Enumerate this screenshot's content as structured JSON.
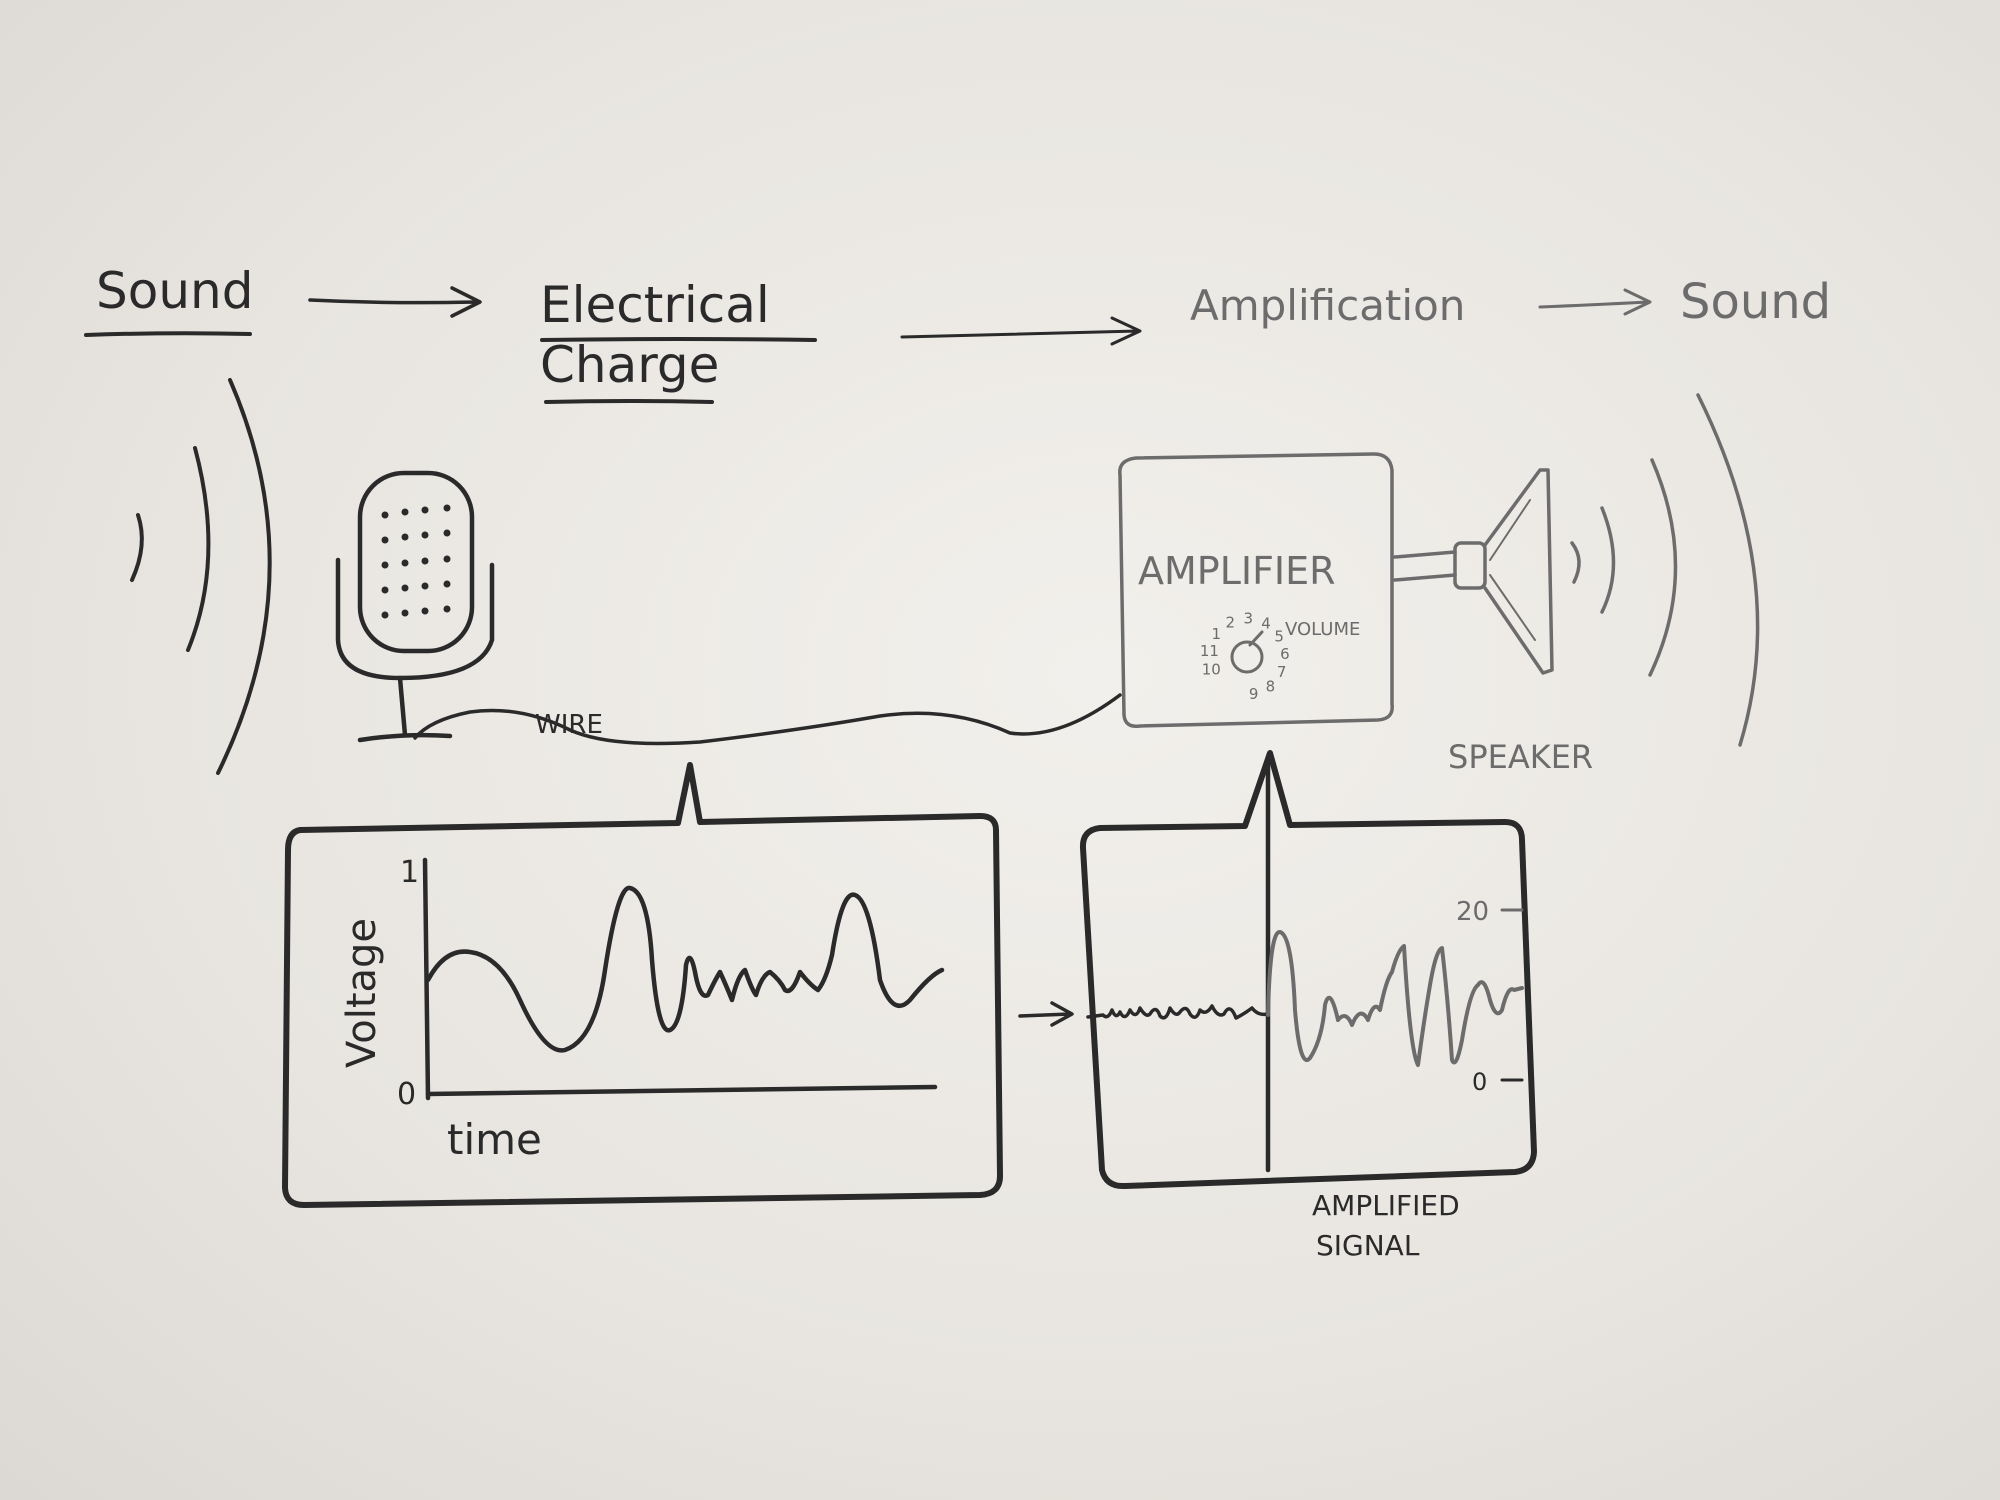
{
  "flow": {
    "step1": "Sound",
    "step2_line1": "Electrical",
    "step2_line2": "Charge",
    "step3": "Amplification",
    "step4": "Sound"
  },
  "labels": {
    "wire": "WIRE",
    "amplifier": "AMPLIFIER",
    "volume": "VOLUME",
    "speaker": "SPEAKER",
    "amplified_line1": "AMPLIFIED",
    "amplified_line2": "SIGNAL"
  },
  "knob": {
    "dial_marks": [
      "10",
      "11",
      "1",
      "2",
      "3",
      "4",
      "5",
      "6",
      "7",
      "8",
      "9"
    ]
  },
  "input_plot": {
    "ylabel": "Voltage",
    "xlabel": "time",
    "y_top_tick": "1",
    "y_bottom_tick": "0"
  },
  "output_plot": {
    "y_top_tick": "20",
    "y_bottom_tick": "0"
  },
  "colors": {
    "ink_dark": "#2a2a2a",
    "ink_light": "#6c6c6c",
    "paper": "#ece9e4"
  }
}
